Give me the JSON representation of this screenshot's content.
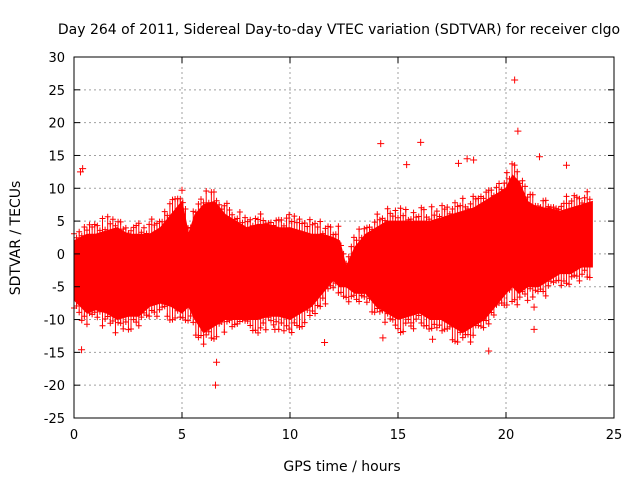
{
  "chart_data": {
    "type": "scatter",
    "title": "Day 264 of 2011, Sidereal Day-to-day VTEC variation (SDTVAR) for receiver clgo",
    "xlabel": "GPS time / hours",
    "ylabel": "SDTVAR / TECUs",
    "xlim": [
      0,
      25
    ],
    "ylim": [
      -25,
      30
    ],
    "xticks": [
      0,
      5,
      10,
      15,
      20,
      25
    ],
    "yticks": [
      -25,
      -20,
      -15,
      -10,
      -5,
      0,
      5,
      10,
      15,
      20,
      25,
      30
    ],
    "grid": true,
    "marker": "+",
    "series": [
      {
        "name": "SDTVAR",
        "color": "#ff0000",
        "band_x": [
          0.0,
          0.3,
          0.6,
          1.0,
          1.5,
          2.0,
          2.5,
          3.0,
          3.5,
          4.0,
          4.5,
          5.0,
          5.3,
          5.6,
          6.0,
          6.5,
          7.0,
          7.5,
          8.0,
          8.5,
          9.0,
          9.5,
          10.0,
          10.5,
          11.0,
          11.5,
          12.0,
          12.3,
          12.6,
          13.0,
          13.5,
          14.0,
          14.5,
          15.0,
          15.5,
          16.0,
          16.5,
          17.0,
          17.5,
          18.0,
          18.5,
          19.0,
          19.5,
          20.0,
          20.3,
          20.6,
          21.0,
          21.5,
          22.0,
          22.5,
          23.0,
          23.5,
          24.0
        ],
        "band_upper": [
          2,
          2.5,
          3,
          3,
          3.5,
          4,
          3,
          3,
          3,
          4,
          6,
          8,
          3,
          6,
          7.5,
          8,
          6,
          5,
          4,
          4.5,
          4.5,
          4,
          4,
          3.5,
          3,
          3,
          2.5,
          2,
          -2,
          1,
          3,
          4,
          5,
          5,
          5,
          5,
          5,
          5.5,
          6,
          6.5,
          7,
          8,
          9,
          10,
          12,
          11,
          8,
          7,
          7,
          6.5,
          7,
          7.5,
          8
        ],
        "band_lower": [
          -7,
          -8,
          -9,
          -8.5,
          -9,
          -10,
          -9.5,
          -9.5,
          -8,
          -7.5,
          -8,
          -9,
          -8,
          -10,
          -12,
          -11,
          -10,
          -10,
          -10,
          -10,
          -9.5,
          -9.5,
          -10,
          -9,
          -8,
          -6,
          -4,
          -5,
          -5,
          -6,
          -6,
          -8,
          -9,
          -10,
          -9.5,
          -9,
          -10,
          -10,
          -11,
          -12,
          -11,
          -10,
          -8,
          -6,
          -5,
          -6,
          -5,
          -5,
          -4,
          -3,
          -3,
          -2,
          -2
        ],
        "outliers": [
          {
            "x": 0.4,
            "y": 13
          },
          {
            "x": 0.3,
            "y": 12.5
          },
          {
            "x": 0.35,
            "y": -14.6
          },
          {
            "x": 5.0,
            "y": 9.7
          },
          {
            "x": 6.55,
            "y": -20
          },
          {
            "x": 6.6,
            "y": -16.5
          },
          {
            "x": 14.2,
            "y": 16.8
          },
          {
            "x": 15.4,
            "y": 13.6
          },
          {
            "x": 16.05,
            "y": 17
          },
          {
            "x": 14.3,
            "y": -12.8
          },
          {
            "x": 15.6,
            "y": -10.5
          },
          {
            "x": 16.6,
            "y": -13
          },
          {
            "x": 18.5,
            "y": 14.3
          },
          {
            "x": 19.2,
            "y": -14.8
          },
          {
            "x": 20.4,
            "y": 26.5
          },
          {
            "x": 20.55,
            "y": 18.7
          },
          {
            "x": 21.55,
            "y": 14.8
          },
          {
            "x": 21.3,
            "y": -8.1
          },
          {
            "x": 21.3,
            "y": -11.5
          },
          {
            "x": 22.8,
            "y": 13.5
          },
          {
            "x": 17.8,
            "y": 13.8
          },
          {
            "x": 18.2,
            "y": 14.5
          },
          {
            "x": 9.3,
            "y": -11.5
          },
          {
            "x": 11.6,
            "y": -13.5
          },
          {
            "x": 13.3,
            "y": -6
          }
        ]
      }
    ]
  }
}
